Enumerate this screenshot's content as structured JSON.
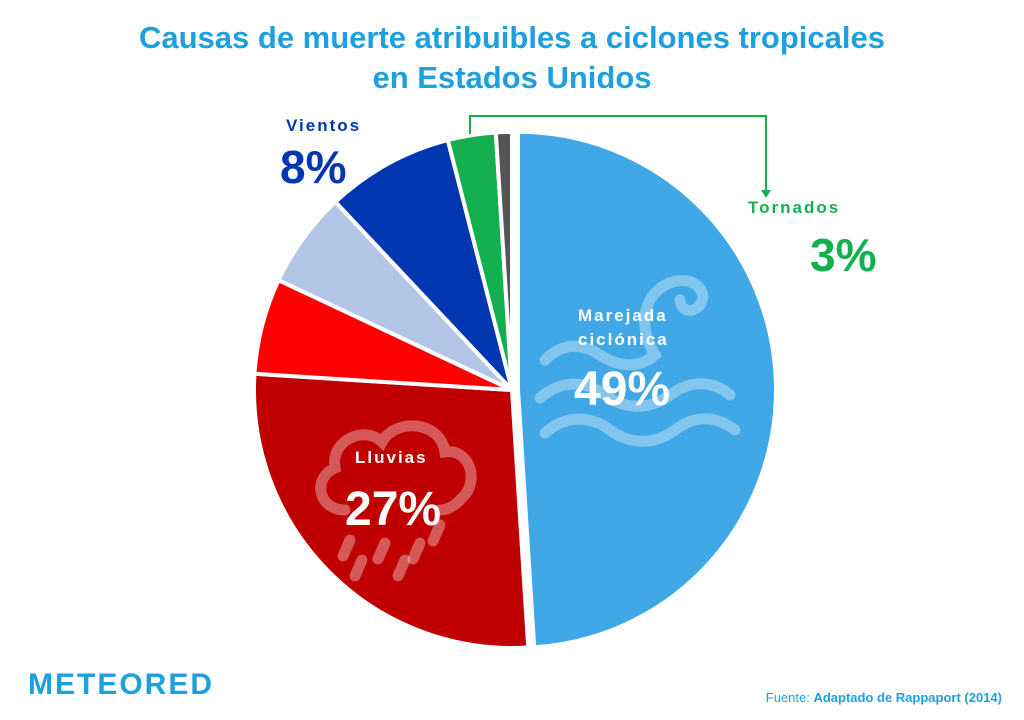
{
  "chart_data": {
    "type": "pie",
    "title": "Causas de muerte atribuibles a ciclones tropicales en Estados Unidos",
    "slices": [
      {
        "label": "Marejada ciclónica",
        "value": 49,
        "display": "49%",
        "color": "#40a8e6"
      },
      {
        "label": "Lluvias",
        "value": 27,
        "display": "27%",
        "color": "#c00000"
      },
      {
        "label": "",
        "value": 6,
        "display": "",
        "color": "#ff0000"
      },
      {
        "label": "",
        "value": 6,
        "display": "",
        "color": "#b4c6e7"
      },
      {
        "label": "Vientos",
        "value": 8,
        "display": "8%",
        "color": "#0036b0"
      },
      {
        "label": "Tornados",
        "value": 3,
        "display": "3%",
        "color": "#14b050"
      },
      {
        "label": "",
        "value": 1,
        "display": "",
        "color": "#555555"
      }
    ]
  },
  "title_line1": "Causas de muerte atribuibles a ciclones tropicales",
  "title_line2": "en Estados Unidos",
  "labels": {
    "surge_line1": "Marejada",
    "surge_line2": "ciclónica",
    "surge_pct": "49%",
    "rain": "Lluvias",
    "rain_pct": "27%",
    "wind": "Vientos",
    "wind_pct": "8%",
    "tornado": "Tornados",
    "tornado_pct": "3%"
  },
  "logo": "METEORED",
  "source_prefix": "Fuente:",
  "source_text": "Adaptado de Rappaport (2014)",
  "icons": [
    "wave-icon",
    "rain-cloud-icon"
  ]
}
